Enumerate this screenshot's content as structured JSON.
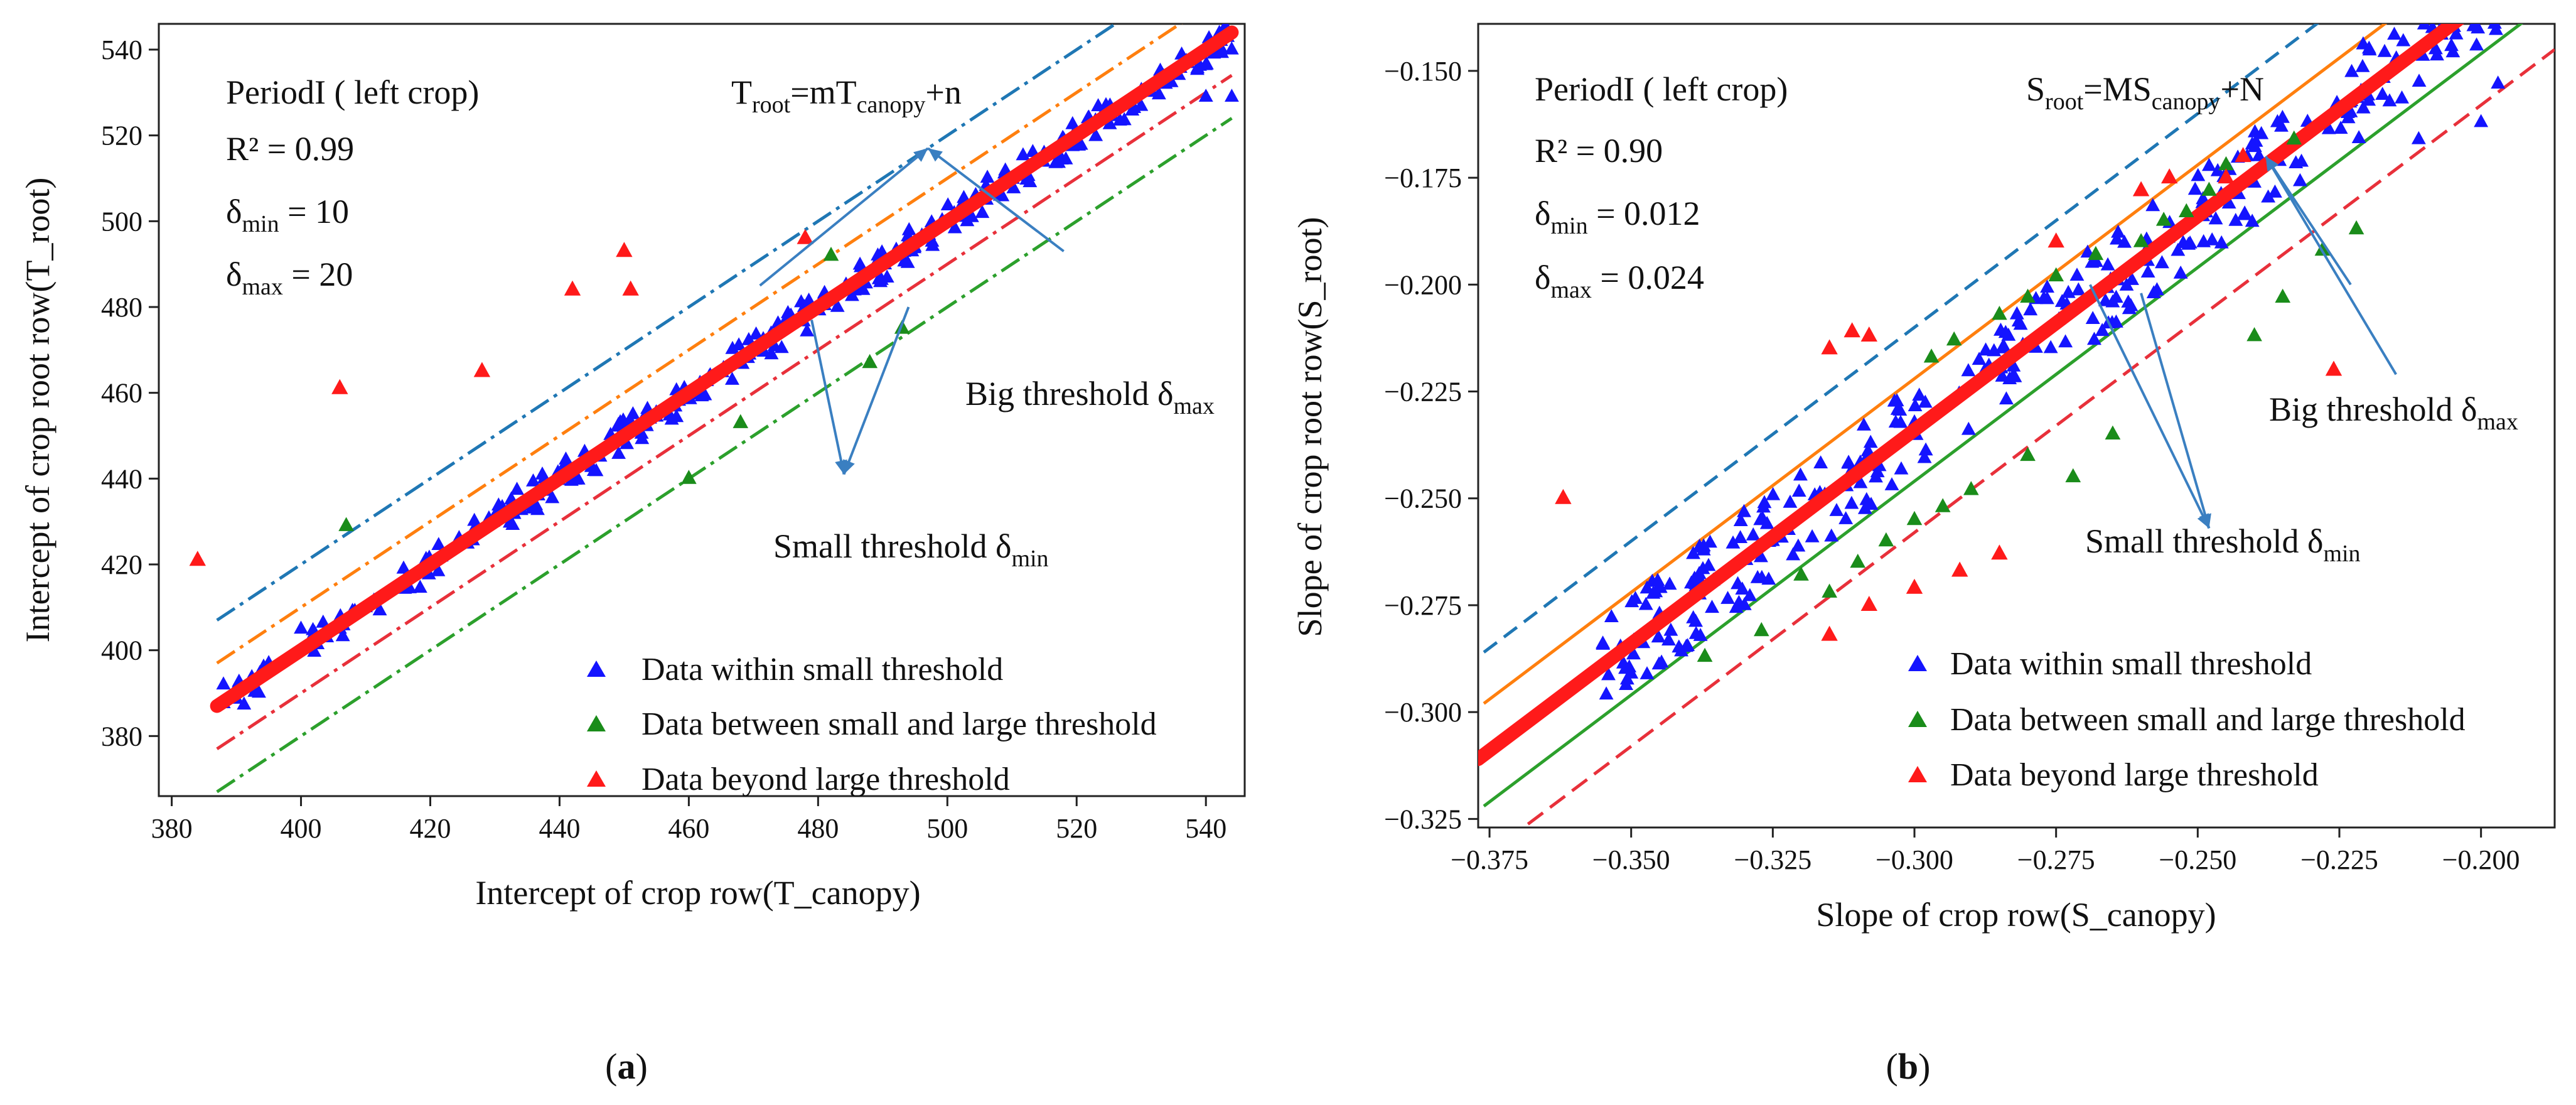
{
  "chart_data": [
    {
      "type": "scatter",
      "caption_open": "(",
      "caption_letter": "a",
      "caption_close": ")",
      "xlabel": "Intercept of crop row(T_canopy)",
      "ylabel": "Intercept of crop root row(T_root)",
      "xlim": [
        378,
        546
      ],
      "ylim": [
        366,
        546
      ],
      "xticks": [
        380,
        400,
        420,
        440,
        460,
        480,
        500,
        520,
        540
      ],
      "yticks": [
        380,
        400,
        420,
        440,
        460,
        480,
        500,
        520,
        540
      ],
      "tick_decimals": 0,
      "tick_minus": false,
      "period_label": "PeriodI ( left crop)",
      "r2_text": "R² = 0.99",
      "dmin_prefix": "δ",
      "dmin_sub": "min",
      "dmin_value": " = 10",
      "dmax_prefix": "δ",
      "dmax_sub": "max",
      "dmax_value": " = 20",
      "eq": [
        "T",
        "root",
        "=mT",
        "canopy",
        "+n"
      ],
      "big_text": "Big threshold δ",
      "big_sub": "max",
      "small_text": "Small threshold δ",
      "small_sub": "min",
      "big_arrow": {
        "from": [
          497,
          517
        ],
        "to": [
          [
            518,
            493
          ],
          [
            471,
            485
          ]
        ]
      },
      "small_arrow": {
        "from": [
          484,
          441
        ],
        "to": [
          [
            494,
            480
          ],
          [
            479,
            477
          ]
        ]
      },
      "fit": {
        "slope": 1.0,
        "intercept": 0,
        "x_range": [
          387,
          544
        ]
      },
      "thresholds": [
        {
          "name": "upper-large",
          "offset": 20,
          "x_range": [
            387,
            544
          ],
          "color": "#1f77b4",
          "dash": "dashdot"
        },
        {
          "name": "upper-small",
          "offset": 10,
          "x_range": [
            387,
            544
          ],
          "color": "#ff7f0e",
          "dash": "dashdot"
        },
        {
          "name": "lower-small",
          "offset": -10,
          "x_range": [
            387,
            544
          ],
          "color": "#e8303a",
          "dash": "dashdot"
        },
        {
          "name": "lower-large",
          "offset": -20,
          "x_range": [
            387,
            544
          ],
          "color": "#2ca02c",
          "dash": "dashdot"
        }
      ],
      "within_band": {
        "x_range": [
          388,
          544
        ],
        "halfwidth": 4,
        "count": 280
      },
      "within_points": [
        [
          388,
          392
        ],
        [
          395,
          397
        ],
        [
          400,
          405
        ],
        [
          404,
          403
        ],
        [
          406,
          405
        ],
        [
          410,
          410
        ],
        [
          540,
          529
        ],
        [
          544,
          529
        ]
      ],
      "between_points": [
        [
          407,
          429
        ],
        [
          460,
          440
        ],
        [
          468,
          453
        ],
        [
          482,
          492
        ],
        [
          488,
          467
        ],
        [
          493,
          475
        ]
      ],
      "beyond_points": [
        [
          384,
          421
        ],
        [
          406,
          461
        ],
        [
          428,
          465
        ],
        [
          442,
          484
        ],
        [
          450,
          493
        ],
        [
          451,
          484
        ],
        [
          478,
          496
        ]
      ],
      "legend": [
        {
          "label": "Data within small threshold",
          "color": "#1414ff"
        },
        {
          "label": "Data between small and large threshold",
          "color": "#1a8c1a"
        },
        {
          "label": "Data beyond large threshold",
          "color": "#ff1a1a"
        }
      ]
    },
    {
      "type": "scatter",
      "caption_open": "(",
      "caption_letter": "b",
      "caption_close": ")",
      "xlabel": "Slope of crop row(S_canopy)",
      "ylabel": "Slope  of crop root row(S_root)",
      "xlim": [
        -0.377,
        -0.187
      ],
      "ylim": [
        -0.327,
        -0.139
      ],
      "xticks": [
        -0.375,
        -0.35,
        -0.325,
        -0.3,
        -0.275,
        -0.25,
        -0.225,
        -0.2
      ],
      "yticks": [
        -0.325,
        -0.3,
        -0.275,
        -0.25,
        -0.225,
        -0.2,
        -0.175,
        -0.15
      ],
      "tick_decimals": 3,
      "tick_minus": true,
      "period_label": "PeriodI ( left crop)",
      "r2_text": "R² = 0.90",
      "dmin_prefix": "δ",
      "dmin_sub": "min",
      "dmin_value": " = 0.012",
      "dmax_prefix": "δ",
      "dmax_sub": "max",
      "dmax_value": " = 0.024",
      "eq": [
        "S",
        "root",
        "=MS",
        "canopy",
        "+N"
      ],
      "big_text": "Big threshold δ",
      "big_sub": "max",
      "small_text": "Small threshold δ",
      "small_sub": "min",
      "big_arrow": {
        "from": [
          -0.238,
          -0.17
        ],
        "to": [
          [
            -0.215,
            -0.221
          ],
          [
            -0.223,
            -0.2
          ]
        ]
      },
      "small_arrow": {
        "from": [
          -0.248,
          -0.257
        ],
        "to": [
          [
            -0.26,
            -0.202
          ],
          [
            -0.269,
            -0.2
          ]
        ]
      },
      "fit": {
        "slope": 1.0,
        "intercept": 0.066,
        "x_range": [
          -0.377,
          -0.187
        ]
      },
      "thresholds": [
        {
          "name": "upper-large",
          "offset": 0.024,
          "x_range": [
            -0.376,
            -0.187
          ],
          "color": "#1f77b4",
          "dash": "dashed"
        },
        {
          "name": "upper-small",
          "offset": 0.012,
          "x_range": [
            -0.376,
            -0.187
          ],
          "color": "#ff7f0e",
          "dash": "solid"
        },
        {
          "name": "lower-small",
          "offset": -0.012,
          "x_range": [
            -0.376,
            -0.187
          ],
          "color": "#2ca02c",
          "dash": "solid"
        },
        {
          "name": "lower-large",
          "offset": -0.024,
          "x_range": [
            -0.376,
            -0.187
          ],
          "color": "#e8303a",
          "dash": "mixed"
        }
      ],
      "within_band": {
        "x_range": [
          -0.355,
          -0.197
        ],
        "halfwidth": 0.011,
        "count": 300
      },
      "within_points": [
        [
          -0.355,
          -0.284
        ],
        [
          -0.35,
          -0.291
        ],
        [
          -0.345,
          -0.271
        ],
        [
          -0.345,
          -0.277
        ],
        [
          -0.343,
          -0.281
        ],
        [
          -0.33,
          -0.275
        ],
        [
          -0.325,
          -0.26
        ],
        [
          -0.323,
          -0.257
        ],
        [
          -0.211,
          -0.166
        ],
        [
          -0.2,
          -0.162
        ],
        [
          -0.197,
          -0.153
        ]
      ],
      "between_points": [
        [
          -0.337,
          -0.287
        ],
        [
          -0.327,
          -0.281
        ],
        [
          -0.32,
          -0.268
        ],
        [
          -0.315,
          -0.272
        ],
        [
          -0.31,
          -0.265
        ],
        [
          -0.305,
          -0.26
        ],
        [
          -0.3,
          -0.255
        ],
        [
          -0.295,
          -0.252
        ],
        [
          -0.297,
          -0.217
        ],
        [
          -0.293,
          -0.213
        ],
        [
          -0.285,
          -0.207
        ],
        [
          -0.28,
          -0.203
        ],
        [
          -0.275,
          -0.198
        ],
        [
          -0.272,
          -0.245
        ],
        [
          -0.265,
          -0.235
        ],
        [
          -0.26,
          -0.19
        ],
        [
          -0.256,
          -0.185
        ],
        [
          -0.252,
          -0.183
        ],
        [
          -0.248,
          -0.178
        ],
        [
          -0.245,
          -0.172
        ],
        [
          -0.233,
          -0.166
        ],
        [
          -0.24,
          -0.212
        ],
        [
          -0.235,
          -0.203
        ],
        [
          -0.228,
          -0.192
        ],
        [
          -0.222,
          -0.187
        ],
        [
          -0.268,
          -0.193
        ],
        [
          -0.29,
          -0.248
        ],
        [
          -0.28,
          -0.24
        ]
      ],
      "beyond_points": [
        [
          -0.362,
          -0.25
        ],
        [
          -0.315,
          -0.215
        ],
        [
          -0.311,
          -0.211
        ],
        [
          -0.308,
          -0.212
        ],
        [
          -0.315,
          -0.282
        ],
        [
          -0.308,
          -0.275
        ],
        [
          -0.3,
          -0.271
        ],
        [
          -0.292,
          -0.267
        ],
        [
          -0.285,
          -0.263
        ],
        [
          -0.275,
          -0.19
        ],
        [
          -0.26,
          -0.178
        ],
        [
          -0.255,
          -0.175
        ],
        [
          -0.245,
          -0.175
        ],
        [
          -0.242,
          -0.17
        ],
        [
          -0.226,
          -0.22
        ]
      ],
      "legend": [
        {
          "label": "Data within small threshold",
          "color": "#1414ff"
        },
        {
          "label": "Data between small and large threshold",
          "color": "#1a8c1a"
        },
        {
          "label": "Data beyond large threshold",
          "color": "#ff1a1a"
        }
      ]
    }
  ]
}
